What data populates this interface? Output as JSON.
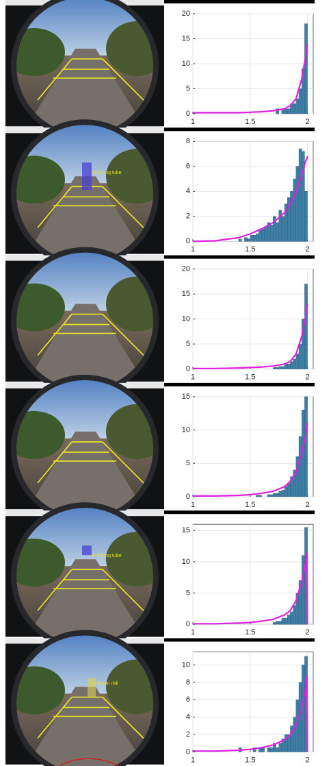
{
  "frame_labels": [
    "in driving tube",
    "in driving tube",
    "Collision risk"
  ],
  "chart_data": [
    {
      "type": "histogram",
      "xlim": [
        1,
        2.05
      ],
      "xticks": [
        1,
        1.5,
        2
      ],
      "ylim": [
        0,
        20
      ],
      "yticks": [
        0,
        5,
        10,
        15,
        20
      ],
      "grid": true,
      "color": "#3f7fa6",
      "bins": [
        1,
        1.025,
        1.05,
        1.075,
        1.1,
        1.125,
        1.15,
        1.175,
        1.2,
        1.225,
        1.25,
        1.275,
        1.3,
        1.325,
        1.35,
        1.375,
        1.4,
        1.425,
        1.45,
        1.475,
        1.5,
        1.525,
        1.55,
        1.575,
        1.6,
        1.625,
        1.65,
        1.675,
        1.7,
        1.725,
        1.75,
        1.775,
        1.8,
        1.825,
        1.85,
        1.875,
        1.9,
        1.925,
        1.95,
        1.975,
        2
      ],
      "counts": [
        0,
        0,
        0,
        0,
        0,
        0,
        0,
        0,
        0,
        0,
        0,
        0,
        0,
        0,
        0,
        0,
        0,
        0,
        0,
        0,
        0,
        0,
        0,
        0,
        0,
        0,
        0,
        0,
        0,
        1,
        0,
        1,
        1,
        1,
        2,
        2,
        3,
        5,
        9,
        18
      ],
      "curve": {
        "color": "#e020e0",
        "x": [
          1,
          1.2,
          1.4,
          1.5,
          1.6,
          1.7,
          1.8,
          1.85,
          1.9,
          1.95,
          1.98,
          2
        ],
        "values": [
          0.2,
          0.2,
          0.2,
          0.3,
          0.4,
          0.6,
          1,
          1.6,
          3,
          7,
          11,
          14
        ]
      }
    },
    {
      "type": "histogram",
      "xlim": [
        1,
        2.05
      ],
      "xticks": [
        1,
        1.5,
        2
      ],
      "ylim": [
        0,
        8
      ],
      "yticks": [
        0,
        2,
        4,
        6,
        8
      ],
      "grid": true,
      "color": "#3f7fa6",
      "bins": [
        1,
        1.025,
        1.05,
        1.075,
        1.1,
        1.125,
        1.15,
        1.175,
        1.2,
        1.225,
        1.25,
        1.275,
        1.3,
        1.325,
        1.35,
        1.375,
        1.4,
        1.425,
        1.45,
        1.475,
        1.5,
        1.525,
        1.55,
        1.575,
        1.6,
        1.625,
        1.65,
        1.675,
        1.7,
        1.725,
        1.75,
        1.775,
        1.8,
        1.825,
        1.85,
        1.875,
        1.9,
        1.925,
        1.95,
        1.975,
        2
      ],
      "counts": [
        0,
        0,
        0,
        0,
        0,
        0,
        0,
        0,
        0,
        0,
        0,
        0,
        0,
        0,
        0,
        0,
        0.2,
        0,
        0.3,
        0.2,
        0.5,
        0.5,
        0.6,
        1,
        1,
        1.2,
        1.5,
        1.3,
        2,
        1.5,
        2.5,
        2,
        3,
        3.5,
        4,
        5,
        6,
        7.4,
        7.2,
        4
      ],
      "curve": {
        "color": "#e020e0",
        "x": [
          1,
          1.2,
          1.4,
          1.5,
          1.6,
          1.7,
          1.8,
          1.85,
          1.9,
          1.95,
          1.98,
          2
        ],
        "values": [
          0,
          0.05,
          0.3,
          0.6,
          1,
          1.5,
          2.3,
          3,
          3.9,
          5.3,
          6.3,
          6.8
        ]
      }
    },
    {
      "type": "histogram",
      "xlim": [
        1,
        2.05
      ],
      "xticks": [
        1,
        1.5,
        2
      ],
      "ylim": [
        0,
        20
      ],
      "yticks": [
        0,
        5,
        10,
        15,
        20
      ],
      "grid": true,
      "color": "#3f7fa6",
      "bins": [
        1,
        1.025,
        1.05,
        1.075,
        1.1,
        1.125,
        1.15,
        1.175,
        1.2,
        1.225,
        1.25,
        1.275,
        1.3,
        1.325,
        1.35,
        1.375,
        1.4,
        1.425,
        1.45,
        1.475,
        1.5,
        1.525,
        1.55,
        1.575,
        1.6,
        1.625,
        1.65,
        1.675,
        1.7,
        1.725,
        1.75,
        1.775,
        1.8,
        1.825,
        1.85,
        1.875,
        1.9,
        1.925,
        1.95,
        1.975,
        2
      ],
      "counts": [
        0,
        0,
        0,
        0,
        0,
        0,
        0,
        0,
        0,
        0,
        0,
        0,
        0,
        0,
        0,
        0,
        0,
        0,
        0,
        0,
        0,
        0,
        0,
        0,
        0,
        0,
        0,
        0,
        0.3,
        0.3,
        0.5,
        0.5,
        1,
        1,
        1.5,
        2,
        3,
        5,
        10,
        17
      ],
      "curve": {
        "color": "#e020e0",
        "x": [
          1,
          1.2,
          1.4,
          1.5,
          1.6,
          1.7,
          1.8,
          1.85,
          1.9,
          1.95,
          1.98,
          2
        ],
        "values": [
          0.1,
          0.1,
          0.2,
          0.3,
          0.4,
          0.6,
          1,
          1.5,
          3,
          6.5,
          10,
          13
        ]
      }
    },
    {
      "type": "histogram",
      "xlim": [
        1,
        2.05
      ],
      "xticks": [
        1,
        1.5,
        2
      ],
      "ylim": [
        0,
        15
      ],
      "yticks": [
        0,
        5,
        10,
        15
      ],
      "grid": true,
      "color": "#3f7fa6",
      "bins": [
        1,
        1.025,
        1.05,
        1.075,
        1.1,
        1.125,
        1.15,
        1.175,
        1.2,
        1.225,
        1.25,
        1.275,
        1.3,
        1.325,
        1.35,
        1.375,
        1.4,
        1.425,
        1.45,
        1.475,
        1.5,
        1.525,
        1.55,
        1.575,
        1.6,
        1.625,
        1.65,
        1.675,
        1.7,
        1.725,
        1.75,
        1.775,
        1.8,
        1.825,
        1.85,
        1.875,
        1.9,
        1.925,
        1.95,
        1.975,
        2
      ],
      "counts": [
        0,
        0,
        0,
        0,
        0,
        0,
        0,
        0,
        0,
        0,
        0,
        0,
        0,
        0,
        0,
        0,
        0,
        0,
        0,
        0,
        0,
        0,
        0.2,
        0.2,
        0,
        0,
        0.3,
        0.3,
        0.5,
        0.5,
        0.8,
        1,
        1.5,
        2,
        3,
        4,
        6,
        9,
        13,
        15
      ],
      "curve": {
        "color": "#e020e0",
        "x": [
          1,
          1.2,
          1.4,
          1.5,
          1.6,
          1.7,
          1.8,
          1.85,
          1.9,
          1.95,
          1.98,
          2
        ],
        "values": [
          0.1,
          0.1,
          0.2,
          0.3,
          0.5,
          0.8,
          1.5,
          2.3,
          3.8,
          6.5,
          9,
          11
        ]
      }
    },
    {
      "type": "histogram",
      "xlim": [
        1,
        2.05
      ],
      "xticks": [
        1,
        1.5,
        2
      ],
      "ylim": [
        0,
        16
      ],
      "yticks": [
        0,
        5,
        10,
        15
      ],
      "grid": true,
      "color": "#3f7fa6",
      "bins": [
        1,
        1.025,
        1.05,
        1.075,
        1.1,
        1.125,
        1.15,
        1.175,
        1.2,
        1.225,
        1.25,
        1.275,
        1.3,
        1.325,
        1.35,
        1.375,
        1.4,
        1.425,
        1.45,
        1.475,
        1.5,
        1.525,
        1.55,
        1.575,
        1.6,
        1.625,
        1.65,
        1.675,
        1.7,
        1.725,
        1.75,
        1.775,
        1.8,
        1.825,
        1.85,
        1.875,
        1.9,
        1.925,
        1.95,
        1.975,
        2
      ],
      "counts": [
        0,
        0,
        0,
        0,
        0,
        0,
        0,
        0,
        0,
        0,
        0,
        0,
        0,
        0,
        0,
        0,
        0,
        0,
        0,
        0,
        0,
        0,
        0,
        0,
        0,
        0,
        0,
        0,
        0.3,
        0.5,
        0.5,
        1,
        1,
        1.5,
        2,
        3,
        5,
        7,
        11,
        15.5
      ],
      "curve": {
        "color": "#e020e0",
        "x": [
          1,
          1.2,
          1.4,
          1.5,
          1.6,
          1.7,
          1.8,
          1.85,
          1.9,
          1.95,
          1.98,
          1.995,
          2
        ],
        "values": [
          0.1,
          0.1,
          0.2,
          0.3,
          0.5,
          0.8,
          1.5,
          2.2,
          3.8,
          6.8,
          9.5,
          11.5,
          0
        ]
      }
    },
    {
      "type": "histogram",
      "xlim": [
        1,
        2.05
      ],
      "xticks": [
        1,
        1.5,
        2
      ],
      "ylim": [
        0,
        11.5
      ],
      "yticks": [
        0,
        2,
        4,
        6,
        8,
        10
      ],
      "grid": true,
      "color": "#3f7fa6",
      "bins": [
        1,
        1.025,
        1.05,
        1.075,
        1.1,
        1.125,
        1.15,
        1.175,
        1.2,
        1.225,
        1.25,
        1.275,
        1.3,
        1.325,
        1.35,
        1.375,
        1.4,
        1.425,
        1.45,
        1.475,
        1.5,
        1.525,
        1.55,
        1.575,
        1.6,
        1.625,
        1.65,
        1.675,
        1.7,
        1.725,
        1.75,
        1.775,
        1.8,
        1.825,
        1.85,
        1.875,
        1.9,
        1.925,
        1.95,
        1.975,
        2
      ],
      "counts": [
        0,
        0,
        0,
        0,
        0,
        0,
        0,
        0,
        0,
        0,
        0,
        0,
        0,
        0,
        0,
        0,
        0.5,
        0,
        0,
        0,
        0,
        0.5,
        0,
        0.5,
        0.5,
        0,
        0.5,
        0.5,
        1,
        0.5,
        1,
        1.5,
        2,
        2,
        3,
        4,
        6,
        8,
        10,
        11
      ],
      "curve": {
        "color": "#e020e0",
        "x": [
          1,
          1.2,
          1.4,
          1.5,
          1.6,
          1.7,
          1.8,
          1.85,
          1.9,
          1.95,
          1.98,
          1.995,
          2
        ],
        "values": [
          0.1,
          0.1,
          0.2,
          0.3,
          0.5,
          0.8,
          1.4,
          2,
          3,
          5,
          7,
          8.8,
          0
        ]
      }
    }
  ]
}
